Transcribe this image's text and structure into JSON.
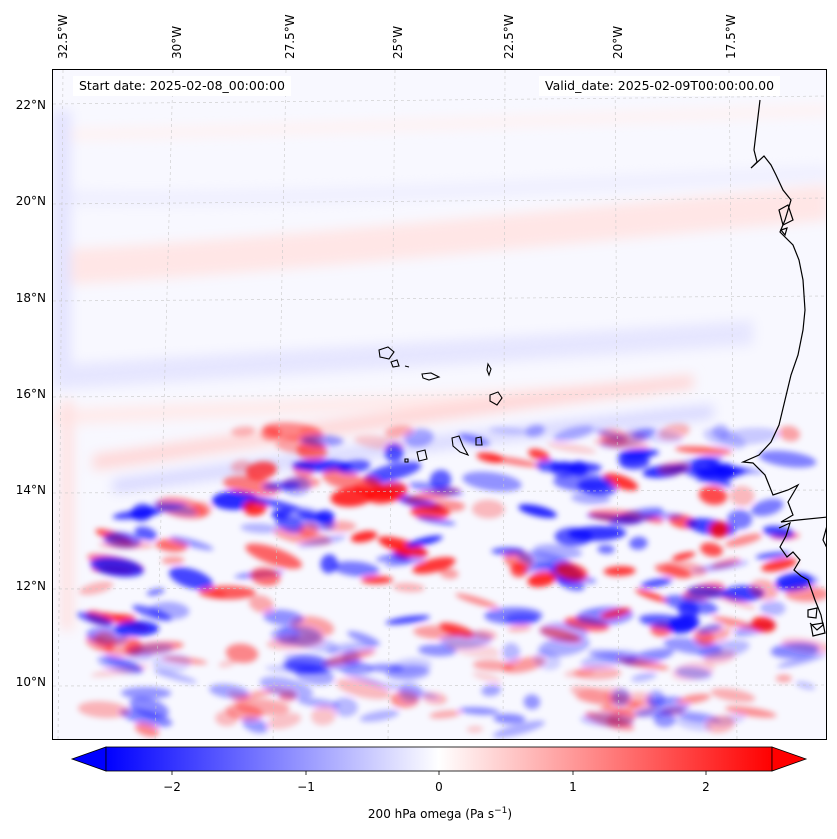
{
  "map": {
    "lon_labels": [
      "32.5°W",
      "30°W",
      "27.5°W",
      "25°W",
      "22.5°W",
      "20°W",
      "17.5°W"
    ],
    "lat_labels": [
      "22°N",
      "20°N",
      "18°N",
      "16°N",
      "14°N",
      "12°N",
      "10°N"
    ],
    "start_date": "Start date: 2025-02-08_00:00:00",
    "valid_date": "Valid_date: 2025-02-09T00:00:00.00",
    "field": "200 hPa omega",
    "colormap": "bwr",
    "extent": {
      "lon_min": -33.0,
      "lon_max": -15.0,
      "lat_min": 8.9,
      "lat_max": 22.8
    },
    "colors": {
      "negative": "#0000ff",
      "zero": "#ffffff",
      "positive": "#ff0000"
    }
  },
  "colorbar": {
    "ticks": [
      "−2",
      "−1",
      "0",
      "1",
      "2"
    ],
    "tick_values": [
      -2,
      -1,
      0,
      1,
      2
    ],
    "vmin": -2.5,
    "vmax": 2.5,
    "label": "200 hPa omega (Pa s",
    "label_exp": "−1",
    "label_close": ")"
  }
}
